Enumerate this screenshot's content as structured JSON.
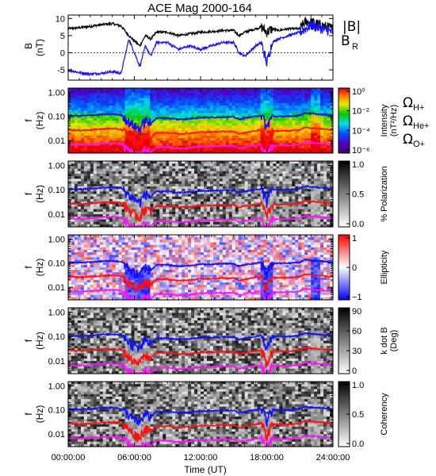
{
  "title": "ACE Mag 2000-164",
  "xlabel": "Time (UT)",
  "x_ticks": [
    "00:00:00",
    "06:00:00",
    "12:00:00",
    "18:00:00",
    "24:00:00"
  ],
  "colors": {
    "B": "#000000",
    "BR": "#1010ff",
    "H": "#1010ff",
    "He": "#ff1010",
    "O": "#ff10ff"
  },
  "legend": {
    "B_total": "|B|",
    "BR_main": "B",
    "BR_sub": "R",
    "omega": "Ω",
    "H_sub": "H+",
    "He_sub": "He+",
    "O_sub": "O+"
  },
  "chart_data": [
    {
      "type": "line",
      "ylabel": "B",
      "ylabel_unit": "(nT)",
      "x_hours": [
        0,
        1,
        2,
        3,
        4,
        4.8,
        5.5,
        6,
        6.5,
        7,
        7.5,
        8,
        9,
        10,
        11,
        12,
        13,
        14,
        15,
        15.5,
        16,
        17,
        17.5,
        18,
        18.5,
        19,
        20,
        21,
        21.5,
        22,
        23,
        24
      ],
      "ylim": [
        -8,
        11
      ],
      "y_ticks": [
        -5,
        0,
        5,
        10
      ],
      "series": [
        {
          "key": "B",
          "values": [
            7,
            7.3,
            7.7,
            8.2,
            8.5,
            7.8,
            5,
            3.5,
            2,
            5,
            4,
            6,
            6,
            5,
            5.5,
            6,
            6.2,
            6.5,
            6.5,
            5,
            6,
            7,
            7.5,
            6,
            7,
            6.5,
            7,
            7,
            9,
            9,
            8,
            7
          ]
        },
        {
          "key": "BR",
          "values": [
            -5,
            -5.8,
            -6.2,
            -6,
            -5.5,
            -6,
            4,
            0,
            -4,
            2,
            -1,
            3,
            3,
            1,
            2,
            1,
            2,
            3,
            3,
            0,
            -1,
            2,
            3,
            -3,
            3,
            4,
            5,
            6,
            7,
            8,
            7,
            6
          ]
        }
      ]
    },
    {
      "type": "heatmap",
      "ylabel": "f",
      "ylabel_unit": "(Hz)",
      "colorbar_label": "Intensity",
      "colorbar_unit": "(nT²/Hz)",
      "colorbar_ticks": [
        "10⁰",
        "10⁻²",
        "10⁻⁴",
        "10⁻⁶"
      ],
      "y_ticks": [
        "1.00",
        "0.10",
        "0.01"
      ],
      "ylim": [
        0.003,
        1.5
      ],
      "colormap": "rainbow"
    },
    {
      "type": "heatmap",
      "ylabel": "f",
      "ylabel_unit": "(Hz)",
      "colorbar_label": "% Polarization",
      "colorbar_ticks": [
        "1.0",
        "0.5",
        "0.0"
      ],
      "y_ticks": [
        "1.00",
        "0.10",
        "0.01"
      ],
      "ylim": [
        0.003,
        1.5
      ],
      "colormap": "gray"
    },
    {
      "type": "heatmap",
      "ylabel": "f",
      "ylabel_unit": "(Hz)",
      "colorbar_label": "Ellipticity",
      "colorbar_ticks": [
        "1",
        "0",
        "−1"
      ],
      "y_ticks": [
        "1.00",
        "0.10",
        "0.01"
      ],
      "ylim": [
        0.003,
        1.5
      ],
      "colormap": "bluewhitered"
    },
    {
      "type": "heatmap",
      "ylabel": "f",
      "ylabel_unit": "(Hz)",
      "colorbar_label": "k dot B",
      "colorbar_unit": "(Deg)",
      "colorbar_ticks": [
        "90",
        "60",
        "30",
        "0"
      ],
      "y_ticks": [
        "1.00",
        "0.10",
        "0.01"
      ],
      "ylim": [
        0.003,
        1.5
      ],
      "colormap": "gray"
    },
    {
      "type": "heatmap",
      "ylabel": "f",
      "ylabel_unit": "(Hz)",
      "colorbar_label": "Coherency",
      "colorbar_ticks": [
        "1.0",
        "0.5",
        "0.0"
      ],
      "y_ticks": [
        "1.00",
        "0.10",
        "0.01"
      ],
      "ylim": [
        0.003,
        1.5
      ],
      "colormap": "gray"
    }
  ],
  "gyrofrequency_hz": {
    "x_hours": [
      0,
      1,
      2,
      3,
      4,
      4.8,
      5.5,
      6,
      6.5,
      7,
      7.5,
      8,
      9,
      10,
      11,
      12,
      13,
      14,
      15,
      15.5,
      16,
      17,
      17.5,
      18,
      18.5,
      19,
      20,
      21,
      21.5,
      22,
      23,
      24
    ],
    "H": [
      0.11,
      0.105,
      0.11,
      0.12,
      0.125,
      0.115,
      0.06,
      0.04,
      0.03,
      0.07,
      0.05,
      0.085,
      0.085,
      0.075,
      0.08,
      0.09,
      0.09,
      0.095,
      0.095,
      0.075,
      0.085,
      0.1,
      0.11,
      0.03,
      0.1,
      0.1,
      0.1,
      0.11,
      0.14,
      0.13,
      0.12,
      0.11
    ]
  }
}
